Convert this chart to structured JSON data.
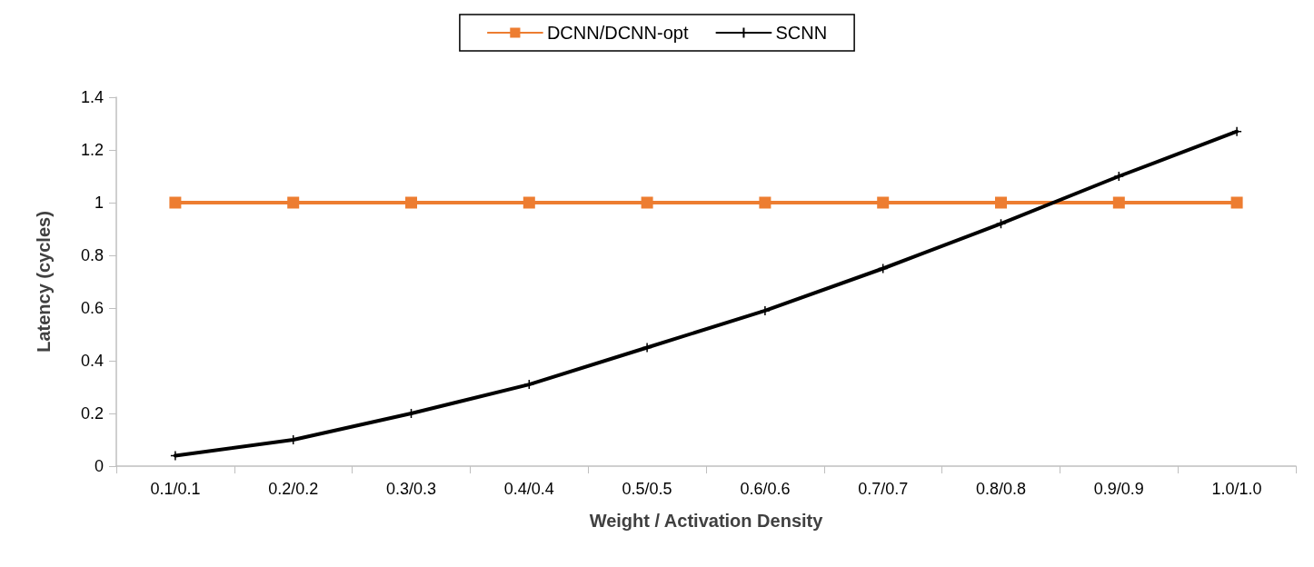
{
  "chart_data": {
    "type": "line",
    "xlabel": "Weight / Activation Density",
    "ylabel": "Latency (cycles)",
    "categories": [
      "0.1/0.1",
      "0.2/0.2",
      "0.3/0.3",
      "0.4/0.4",
      "0.5/0.5",
      "0.6/0.6",
      "0.7/0.7",
      "0.8/0.8",
      "0.9/0.9",
      "1.0/1.0"
    ],
    "series": [
      {
        "name": "DCNN/DCNN-opt",
        "color": "#ed7d31",
        "marker": "square",
        "values": [
          1,
          1,
          1,
          1,
          1,
          1,
          1,
          1,
          1,
          1
        ]
      },
      {
        "name": "SCNN",
        "color": "#000000",
        "marker": "cross",
        "values": [
          0.04,
          0.1,
          0.2,
          0.31,
          0.45,
          0.59,
          0.75,
          0.92,
          1.1,
          1.27
        ]
      }
    ],
    "ylim": [
      0,
      1.4
    ],
    "yticks": [
      0,
      0.2,
      0.4,
      0.6,
      0.8,
      1,
      1.2,
      1.4
    ],
    "grid": false,
    "legend": "top"
  }
}
